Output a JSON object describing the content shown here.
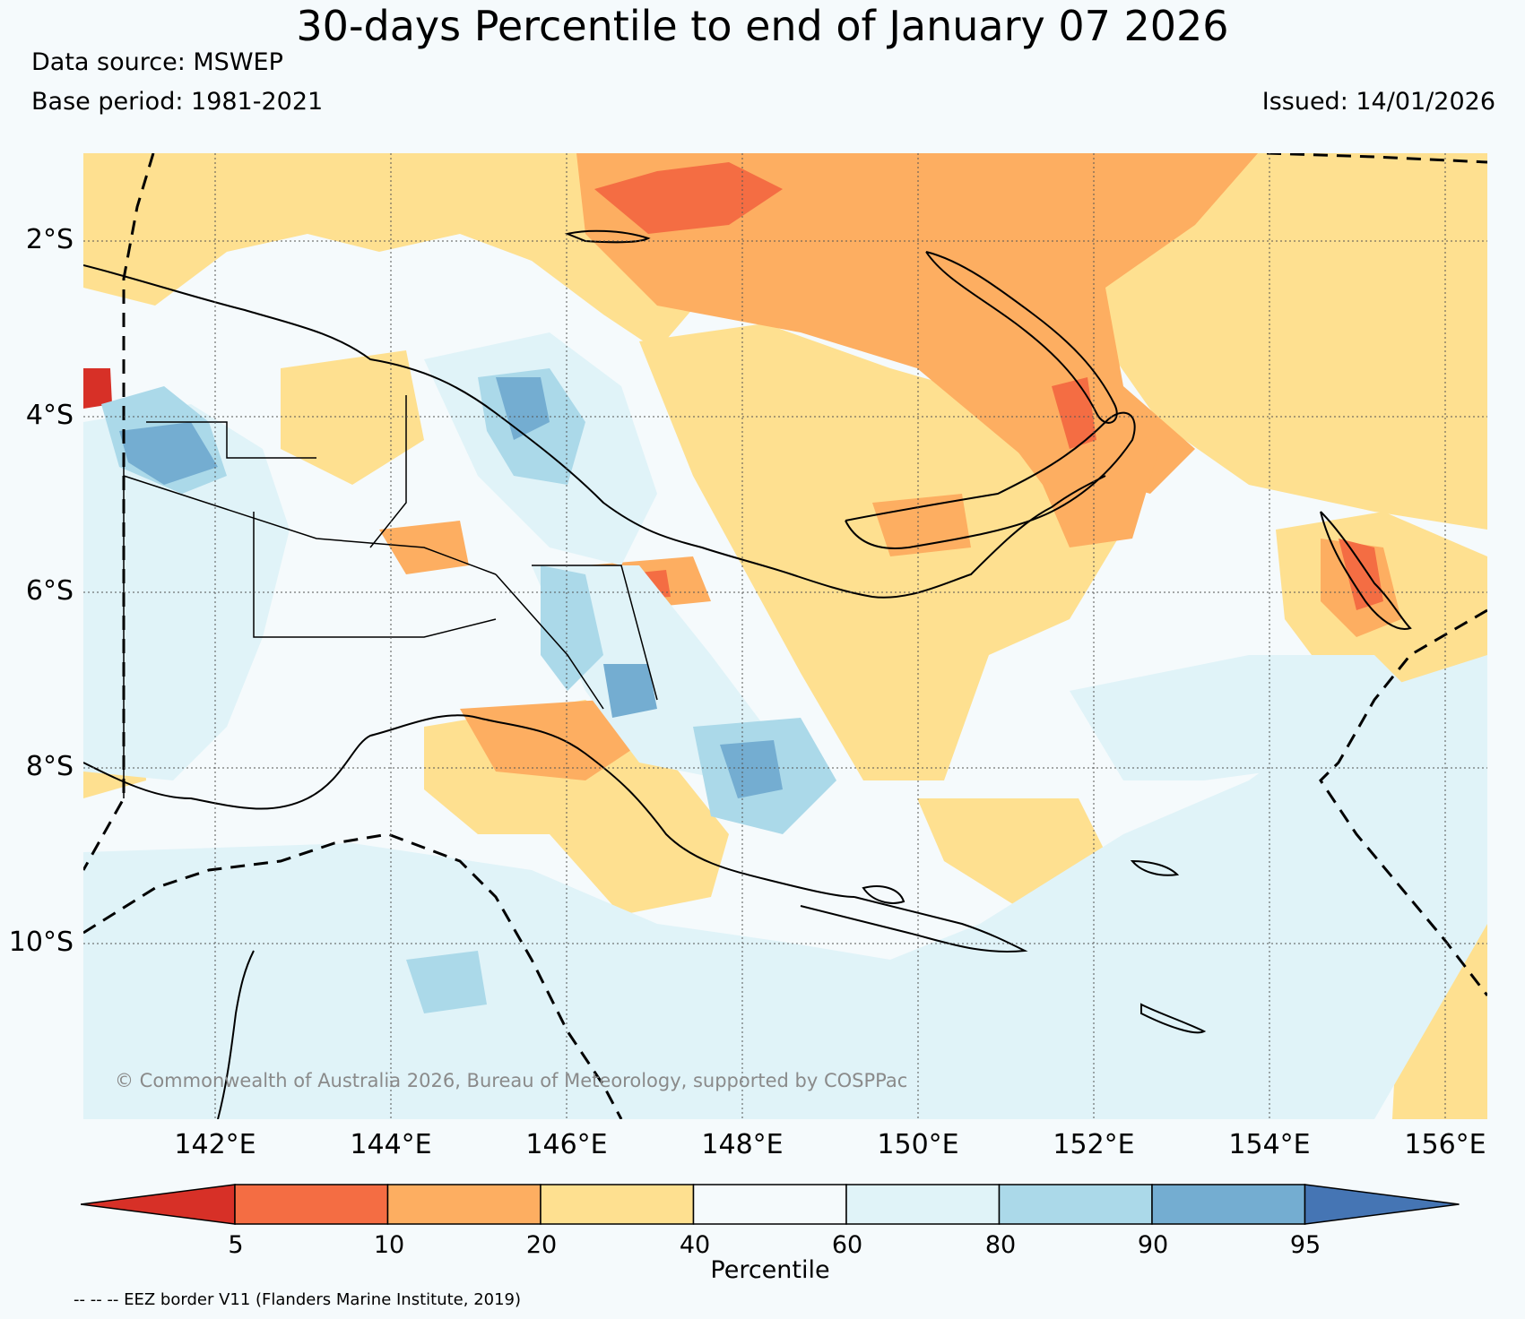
{
  "header": {
    "title": "30-days Percentile to end of January 07 2026",
    "data_source": "Data source: MSWEP",
    "base_period": "Base period: 1981-2021",
    "issued": "Issued: 14/01/2026"
  },
  "map": {
    "lat_labels": [
      "2°S",
      "4°S",
      "6°S",
      "8°S",
      "10°S"
    ],
    "lon_labels": [
      "142°E",
      "144°E",
      "146°E",
      "148°E",
      "150°E",
      "152°E",
      "154°E",
      "156°E"
    ],
    "copyright": "© Commonwealth of Australia 2026, Bureau of Meteorology, supported by COSPPac"
  },
  "colorbar": {
    "label": "Percentile",
    "ticks": [
      "5",
      "10",
      "20",
      "40",
      "60",
      "80",
      "90",
      "95"
    ],
    "colors": [
      "#d73027",
      "#f46d43",
      "#fdae61",
      "#fee090",
      "#f5fafc",
      "#e0f3f8",
      "#abd9e9",
      "#74add1",
      "#4575b4"
    ]
  },
  "footer": {
    "eez_note": "-- -- -- EEZ border V11 (Flanders Marine Institute, 2019)"
  }
}
